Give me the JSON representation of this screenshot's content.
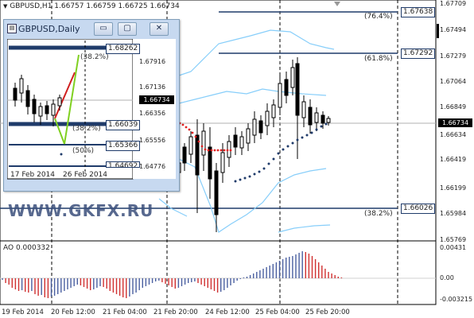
{
  "header": {
    "symbol_line": "GBPUSD,H1  1.66757  1.66759  1.66725  1.66734"
  },
  "price_axis": [
    "1.67709",
    "1.67494",
    "1.67279",
    "1.67064",
    "1.66849",
    "1.66634",
    "1.66419",
    "1.66199",
    "1.65984",
    "1.65769"
  ],
  "current_price": "1.66734",
  "fibo_levels": [
    {
      "pct": "(76.4%)",
      "price": "1.67638"
    },
    {
      "pct": "(61.8%)",
      "price": "1.67292"
    },
    {
      "pct": "(38.2%)",
      "price": "1.66026"
    }
  ],
  "indicator": {
    "title": "AO 0.000332",
    "axis": [
      "0.00431",
      "0.00",
      "-0.003215"
    ]
  },
  "dates": [
    "19 Feb 2014",
    "20 Feb 12:00",
    "21 Feb 04:00",
    "21 Feb 20:00",
    "24 Feb 12:00",
    "25 Feb 04:00",
    "25 Feb 20:00"
  ],
  "inset": {
    "title": "GBPUSD,Daily",
    "buttons": {
      "minimize": "▭",
      "restore": "▢",
      "close": "✕"
    },
    "price_axis": [
      "1.67916",
      "1.67136",
      "1.66356",
      "1.65556",
      "1.64776"
    ],
    "current_price": "1.66734",
    "levels": [
      {
        "price": "1.68262",
        "pct": "(38.2%)"
      },
      {
        "price": "1.66039",
        "pct": "(38.2%)"
      },
      {
        "price": "1.65366",
        "pct": "(50%)"
      },
      {
        "price": "1.64692",
        "pct": ""
      }
    ],
    "dates": [
      "17 Feb 2014",
      "26 Feb 2014"
    ]
  },
  "watermark": "WWW.GKFX.RU",
  "colors": {
    "band": "#87cefa",
    "parabolic": "#1f3b6a",
    "parabolic_up": "#e02020",
    "ao_up": "#4a5fa0",
    "ao_down": "#d03030",
    "fibo": "#1f3b6a"
  }
}
